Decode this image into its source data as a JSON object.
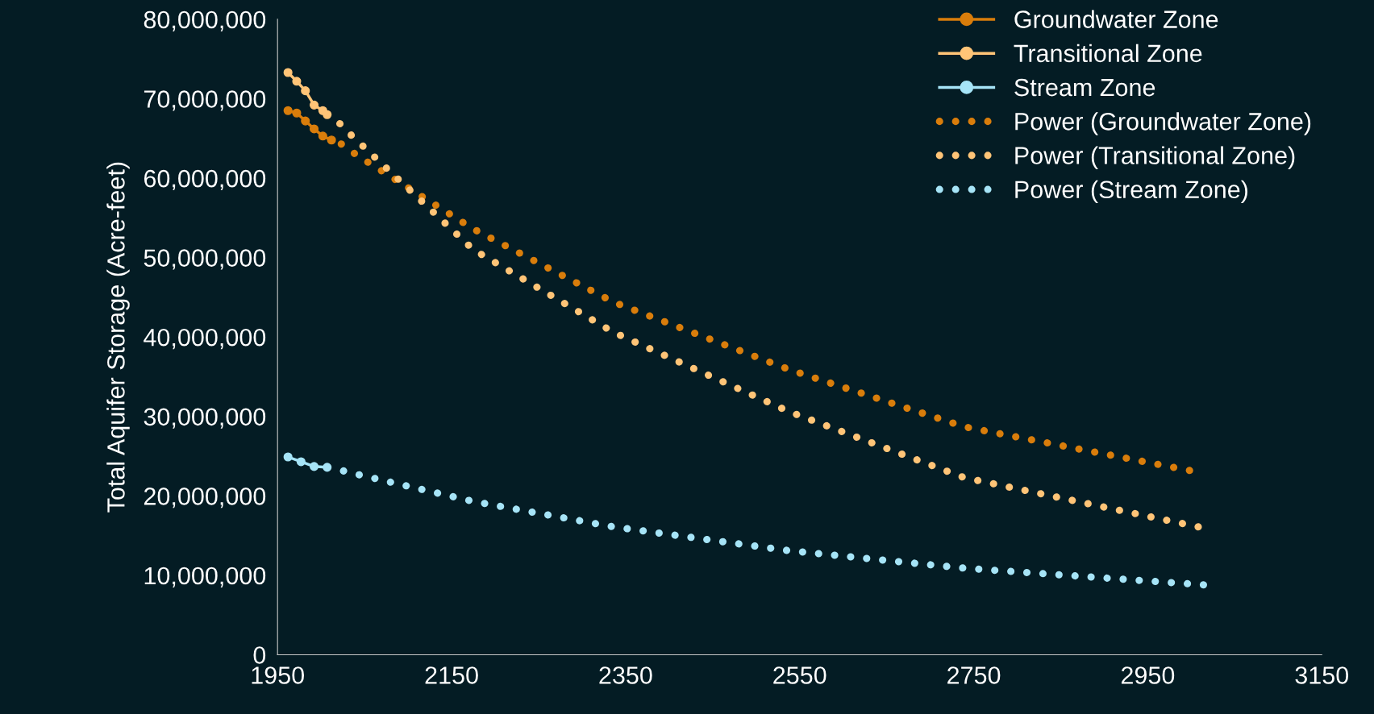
{
  "chart_data": {
    "type": "line",
    "ylabel": "Total Aquifer Storage (Acre-feet)",
    "xlim": [
      1950,
      3150
    ],
    "xticks": [
      1950,
      2150,
      2350,
      2550,
      2750,
      2950,
      3150
    ],
    "ylim": [
      0,
      80000000
    ],
    "yticks": [
      {
        "value": 0,
        "label": "0"
      },
      {
        "value": 10000000,
        "label": "10,000,000"
      },
      {
        "value": 20000000,
        "label": "20,000,000"
      },
      {
        "value": 30000000,
        "label": "30,000,000"
      },
      {
        "value": 40000000,
        "label": "40,000,000"
      },
      {
        "value": 50000000,
        "label": "50,000,000"
      },
      {
        "value": 60000000,
        "label": "60,000,000"
      },
      {
        "value": 70000000,
        "label": "70,000,000"
      },
      {
        "value": 80000000,
        "label": "80,000,000"
      }
    ],
    "grid": false,
    "legend": "top right",
    "series": [
      {
        "name": "Groundwater Zone",
        "color": "#d97d0b",
        "marker": "circle",
        "line_style": "solid",
        "x": [
          1962,
          1972,
          1982,
          1992,
          2002,
          2012
        ],
        "values": [
          68500000,
          68200000,
          67200000,
          66200000,
          65300000,
          64800000
        ]
      },
      {
        "name": "Transitional Zone",
        "color": "#ffc477",
        "marker": "circle",
        "line_style": "solid",
        "x": [
          1962,
          1972,
          1982,
          1992,
          2002,
          2007
        ],
        "values": [
          73300000,
          72200000,
          71000000,
          69200000,
          68500000,
          68000000
        ]
      },
      {
        "name": "Stream Zone",
        "color": "#a6e4f7",
        "marker": "circle",
        "line_style": "solid",
        "x": [
          1962,
          1977,
          1992,
          2007
        ],
        "values": [
          24900000,
          24300000,
          23700000,
          23600000
        ]
      },
      {
        "name": "Power (Groundwater Zone)",
        "color": "#d97d0b",
        "marker": "none",
        "line_style": "dotted",
        "x": [
          2022,
          2041,
          2175,
          2336,
          2538,
          2739,
          2998
        ],
        "values": [
          64400000,
          62900000,
          53600000,
          44400000,
          35900000,
          28700000,
          23200000
        ]
      },
      {
        "name": "Power (Transitional Zone)",
        "color": "#ffc477",
        "marker": "none",
        "line_style": "dotted",
        "x": [
          2017,
          2029,
          2175,
          2336,
          2538,
          2739,
          3008
        ],
        "values": [
          67400000,
          66000000,
          51000000,
          40600000,
          30600000,
          22300000,
          16100000
        ]
      },
      {
        "name": "Power (Stream Zone)",
        "color": "#a6e4f7",
        "marker": "none",
        "line_style": "dotted",
        "x": [
          2017,
          2034,
          2175,
          2336,
          2538,
          2739,
          3014
        ],
        "values": [
          23400000,
          22900000,
          19300000,
          16100000,
          13100000,
          10900000,
          8800000
        ]
      }
    ]
  }
}
